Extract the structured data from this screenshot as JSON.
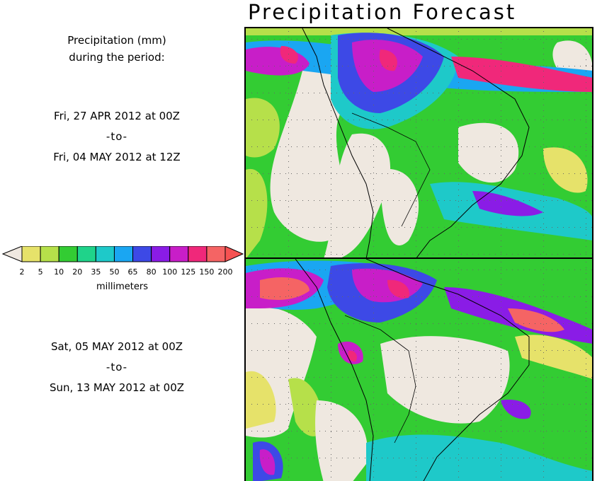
{
  "title": "Precipitation Forecast",
  "header": {
    "line1": "Precipitation (mm)",
    "line2": "during the period:"
  },
  "period1": {
    "start": "Fri, 27 APR 2012 at 00Z",
    "sep": "-to-",
    "end": "Fri, 04 MAY 2012 at 12Z"
  },
  "period2": {
    "start": "Sat, 05 MAY 2012 at 00Z",
    "sep": "-to-",
    "end": "Sun, 13 MAY 2012 at 00Z"
  },
  "legend": {
    "units": "millimeters",
    "ticks": [
      "2",
      "5",
      "10",
      "20",
      "35",
      "50",
      "65",
      "80",
      "100",
      "125",
      "150",
      "200"
    ],
    "colors": [
      "#e6e26a",
      "#b6e04a",
      "#33cc33",
      "#1fd38a",
      "#1ec9c9",
      "#1aa6f2",
      "#3d49e6",
      "#8a1ce6",
      "#c81ec8",
      "#f0287a",
      "#f56464"
    ],
    "below_color": "#efe8e0",
    "above_color": "#f65252"
  }
}
